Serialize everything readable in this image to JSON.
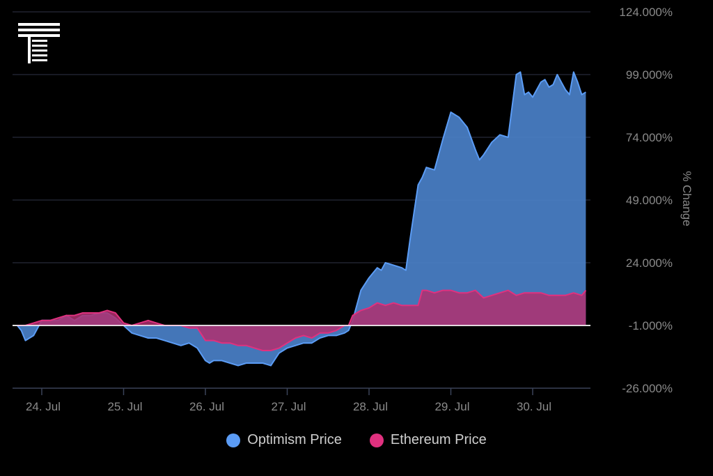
{
  "logo": {
    "name": "T-logo-icon"
  },
  "chart_data": {
    "type": "area",
    "title": "",
    "xlabel": "",
    "ylabel": "% Change",
    "ylim": [
      -26,
      124
    ],
    "y_ticks": [
      -26,
      -1,
      24,
      49,
      74,
      99,
      124
    ],
    "y_tick_labels": [
      "-26.000%",
      "-1.000%",
      "24.000%",
      "49.000%",
      "74.000%",
      "99.000%",
      "124.000%"
    ],
    "xlim": [
      -0.3,
      6.75
    ],
    "x_ticks": [
      0,
      1,
      2,
      3,
      4,
      5,
      6
    ],
    "x_tick_labels": [
      "24. Jul",
      "25. Jul",
      "26. Jul",
      "27. Jul",
      "28. Jul",
      "29. Jul",
      "30. Jul"
    ],
    "baseline": -1,
    "series": [
      {
        "name": "Optimism Price",
        "color": "#5b9cf5",
        "fill": "#4a80c8",
        "x": [
          -0.3,
          -0.25,
          -0.2,
          -0.1,
          0.0,
          0.1,
          0.2,
          0.3,
          0.4,
          0.5,
          0.6,
          0.7,
          0.8,
          0.9,
          1.0,
          1.1,
          1.2,
          1.3,
          1.4,
          1.5,
          1.6,
          1.7,
          1.8,
          1.9,
          2.0,
          2.05,
          2.1,
          2.2,
          2.3,
          2.4,
          2.5,
          2.6,
          2.7,
          2.8,
          2.9,
          3.0,
          3.1,
          3.2,
          3.3,
          3.4,
          3.5,
          3.6,
          3.7,
          3.75,
          3.8,
          3.9,
          4.0,
          4.1,
          4.15,
          4.2,
          4.3,
          4.4,
          4.45,
          4.5,
          4.55,
          4.6,
          4.65,
          4.7,
          4.8,
          4.9,
          5.0,
          5.1,
          5.2,
          5.3,
          5.35,
          5.4,
          5.5,
          5.6,
          5.7,
          5.8,
          5.85,
          5.9,
          5.95,
          6.0,
          6.05,
          6.1,
          6.15,
          6.2,
          6.25,
          6.3,
          6.35,
          6.4,
          6.45,
          6.5,
          6.55,
          6.6,
          6.65
        ],
        "values": [
          -1,
          -3,
          -7,
          -5,
          1,
          1,
          1,
          3,
          1,
          3,
          3,
          4,
          4,
          2,
          -1,
          -4,
          -5,
          -6,
          -6,
          -7,
          -8,
          -9,
          -8,
          -10,
          -15,
          -16,
          -15,
          -15,
          -16,
          -17,
          -16,
          -16,
          -16,
          -17,
          -12,
          -10,
          -9,
          -8,
          -8,
          -6,
          -5,
          -5,
          -4,
          -3,
          1,
          13,
          18,
          22,
          21,
          24,
          23,
          22,
          21,
          33,
          44,
          55,
          58,
          62,
          61,
          73,
          84,
          82,
          78,
          69,
          65,
          67,
          72,
          75,
          74,
          99,
          100,
          91,
          92,
          90,
          93,
          96,
          97,
          94,
          95,
          99,
          96,
          93,
          91,
          100,
          96,
          91,
          92
        ]
      },
      {
        "name": "Ethereum Price",
        "color": "#e0317f",
        "fill": "#b0306f",
        "x": [
          -0.3,
          -0.2,
          -0.1,
          0.0,
          0.1,
          0.2,
          0.3,
          0.4,
          0.5,
          0.6,
          0.7,
          0.8,
          0.9,
          1.0,
          1.1,
          1.2,
          1.3,
          1.4,
          1.5,
          1.6,
          1.7,
          1.8,
          1.9,
          2.0,
          2.1,
          2.2,
          2.3,
          2.4,
          2.5,
          2.6,
          2.7,
          2.8,
          2.9,
          3.0,
          3.1,
          3.2,
          3.3,
          3.4,
          3.5,
          3.6,
          3.7,
          3.75,
          3.8,
          3.9,
          4.0,
          4.1,
          4.2,
          4.3,
          4.4,
          4.5,
          4.6,
          4.65,
          4.7,
          4.8,
          4.9,
          5.0,
          5.1,
          5.2,
          5.3,
          5.4,
          5.5,
          5.6,
          5.7,
          5.8,
          5.9,
          6.0,
          6.1,
          6.2,
          6.3,
          6.4,
          6.5,
          6.6,
          6.65
        ],
        "values": [
          -1,
          -1,
          0,
          1,
          1,
          2,
          3,
          3,
          4,
          4,
          4,
          5,
          4,
          0,
          -1,
          0,
          1,
          0,
          -1,
          -1,
          -1,
          -2,
          -2,
          -7,
          -7,
          -8,
          -8,
          -9,
          -9,
          -10,
          -11,
          -11,
          -10,
          -8,
          -6,
          -5,
          -6,
          -4,
          -4,
          -3,
          -1,
          -1,
          3,
          5,
          6,
          8,
          7,
          8,
          7,
          7,
          7,
          13,
          13,
          12,
          13,
          13,
          12,
          12,
          13,
          10,
          11,
          12,
          13,
          11,
          12,
          12,
          12,
          11,
          11,
          11,
          12,
          11,
          13
        ]
      }
    ],
    "legend": [
      "Optimism Price",
      "Ethereum Price"
    ],
    "legend_position": "bottom-center"
  }
}
